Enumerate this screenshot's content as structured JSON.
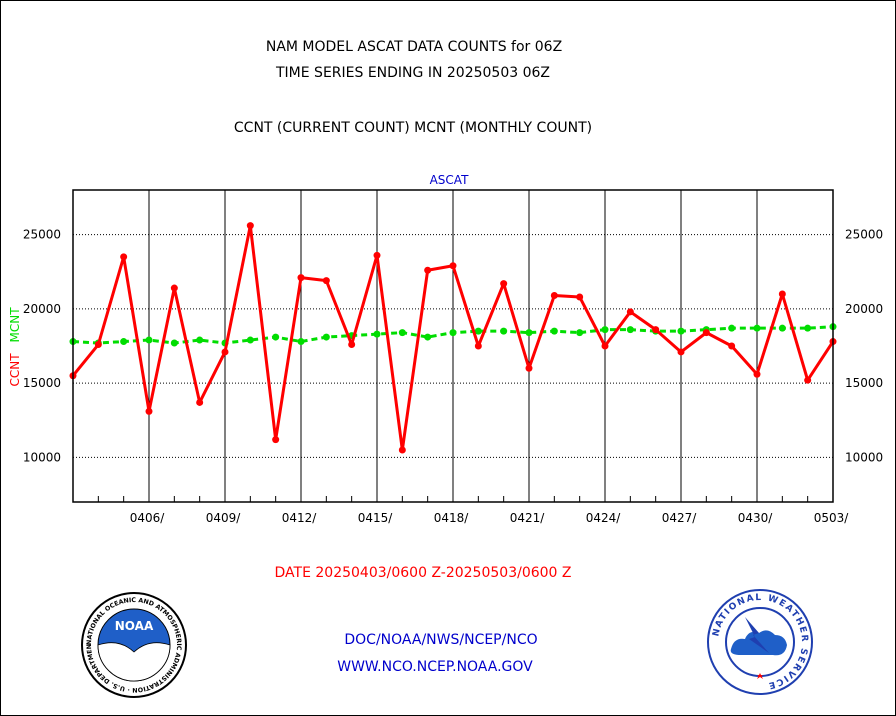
{
  "header": {
    "line1": "NAM MODEL ASCAT DATA COUNTS for 06Z",
    "line2": "TIME SERIES ENDING IN 20250503 06Z",
    "line3": "CCNT (CURRENT COUNT) MCNT (MONTHLY COUNT)"
  },
  "footer": {
    "date_range": "DATE 20250403/0600 Z-20250503/0600 Z",
    "org": "DOC/NOAA/NWS/NCEP/NCO",
    "url": "WWW.NCO.NCEP.NOAA.GOV"
  },
  "logos": {
    "noaa": {
      "center_text": "NOAA",
      "ring_text": "NATIONAL OCEANIC AND ATMOSPHERIC ADMINISTRATION · U.S. DEPARTMENT OF COMMERCE ·"
    },
    "nws": {
      "ring_text": "NATIONAL WEATHER SERVICE"
    }
  },
  "colors": {
    "ccnt": "#ff0000",
    "mcnt": "#00dd00",
    "accent": "#0000cc",
    "grid": "#000000"
  },
  "chart_data": {
    "type": "line",
    "title": "ASCAT",
    "ylabel_ccnt": "CCNT",
    "ylabel_mcnt": "MCNT",
    "ylim": [
      7000,
      28000
    ],
    "yticks": [
      10000,
      15000,
      20000,
      25000
    ],
    "ytick_labels": [
      "10000",
      "15000",
      "20000",
      "25000"
    ],
    "xticks": [
      {
        "day": 3,
        "label": "0406/"
      },
      {
        "day": 6,
        "label": "0409/"
      },
      {
        "day": 9,
        "label": "0412/"
      },
      {
        "day": 12,
        "label": "0415/"
      },
      {
        "day": 15,
        "label": "0418/"
      },
      {
        "day": 18,
        "label": "0421/"
      },
      {
        "day": 21,
        "label": "0424/"
      },
      {
        "day": 24,
        "label": "0427/"
      },
      {
        "day": 27,
        "label": "0430/"
      },
      {
        "day": 30,
        "label": "0503/"
      }
    ],
    "x_dates": [
      "0403",
      "0404",
      "0405",
      "0406",
      "0407",
      "0408",
      "0409",
      "0410",
      "0411",
      "0412",
      "0413",
      "0414",
      "0415",
      "0416",
      "0417",
      "0418",
      "0419",
      "0420",
      "0421",
      "0422",
      "0423",
      "0424",
      "0425",
      "0426",
      "0427",
      "0428",
      "0429",
      "0430",
      "0501",
      "0502",
      "0503"
    ],
    "xlim": [
      0,
      30
    ],
    "grid": true,
    "series": [
      {
        "name": "CCNT",
        "values": [
          15500,
          17600,
          23500,
          13100,
          21400,
          13700,
          17100,
          25600,
          11200,
          22100,
          21900,
          17600,
          23600,
          10500,
          22600,
          22900,
          17500,
          21700,
          16000,
          20900,
          20800,
          17500,
          19800,
          18600,
          17100,
          18400,
          17500,
          15600,
          21000,
          15200,
          17800
        ]
      },
      {
        "name": "MCNT",
        "values": [
          17800,
          17700,
          17800,
          17900,
          17700,
          17900,
          17700,
          17900,
          18100,
          17800,
          18100,
          18200,
          18300,
          18400,
          18100,
          18400,
          18500,
          18500,
          18400,
          18500,
          18400,
          18600,
          18600,
          18500,
          18500,
          18600,
          18700,
          18700,
          18700,
          18700,
          18800
        ]
      }
    ]
  }
}
